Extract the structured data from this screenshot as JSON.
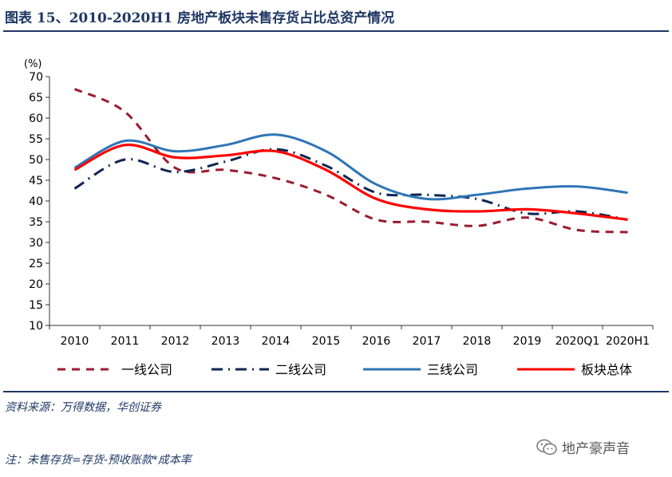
{
  "title": "图表 15、2010-2020H1 房地产板块未售存货占比总资产情况",
  "source": "资料来源：万得数据，华创证券",
  "footnote": "注：未售存货=存货-预收账款*成本率",
  "watermark": "地产豪声音",
  "chart_data": {
    "type": "line",
    "ylabel": "(%)",
    "ylim": [
      10,
      70
    ],
    "yticks": [
      "70",
      "65",
      "60",
      "55",
      "50",
      "45",
      "40",
      "35",
      "30",
      "25",
      "20",
      "15",
      "10"
    ],
    "categories": [
      "2010",
      "2011",
      "2012",
      "2013",
      "2014",
      "2015",
      "2016",
      "2017",
      "2018",
      "2019",
      "2020Q1",
      "2020H1"
    ],
    "grid": false,
    "legend_position": "bottom",
    "series": [
      {
        "name": "一线公司",
        "color": "#9b1b30",
        "style": "dash",
        "values": [
          67,
          61.5,
          48,
          47.5,
          45.5,
          41.5,
          35.5,
          35,
          34,
          36,
          33,
          32.5
        ]
      },
      {
        "name": "二线公司",
        "color": "#0e2452",
        "style": "dashdot",
        "values": [
          43,
          50,
          47,
          49.5,
          52.5,
          48.5,
          42,
          41.5,
          40.5,
          37,
          37.5,
          35.5
        ]
      },
      {
        "name": "三线公司",
        "color": "#2e75b6",
        "style": "solid",
        "values": [
          48,
          54.5,
          52,
          53.5,
          56,
          52,
          44,
          40.5,
          41.5,
          43,
          43.5,
          42
        ]
      },
      {
        "name": "板块总体",
        "color": "#ff0000",
        "style": "solid",
        "values": [
          47.5,
          53.5,
          50.5,
          51,
          52,
          47.5,
          40.5,
          38,
          37.5,
          38,
          37,
          35.5
        ]
      }
    ]
  }
}
